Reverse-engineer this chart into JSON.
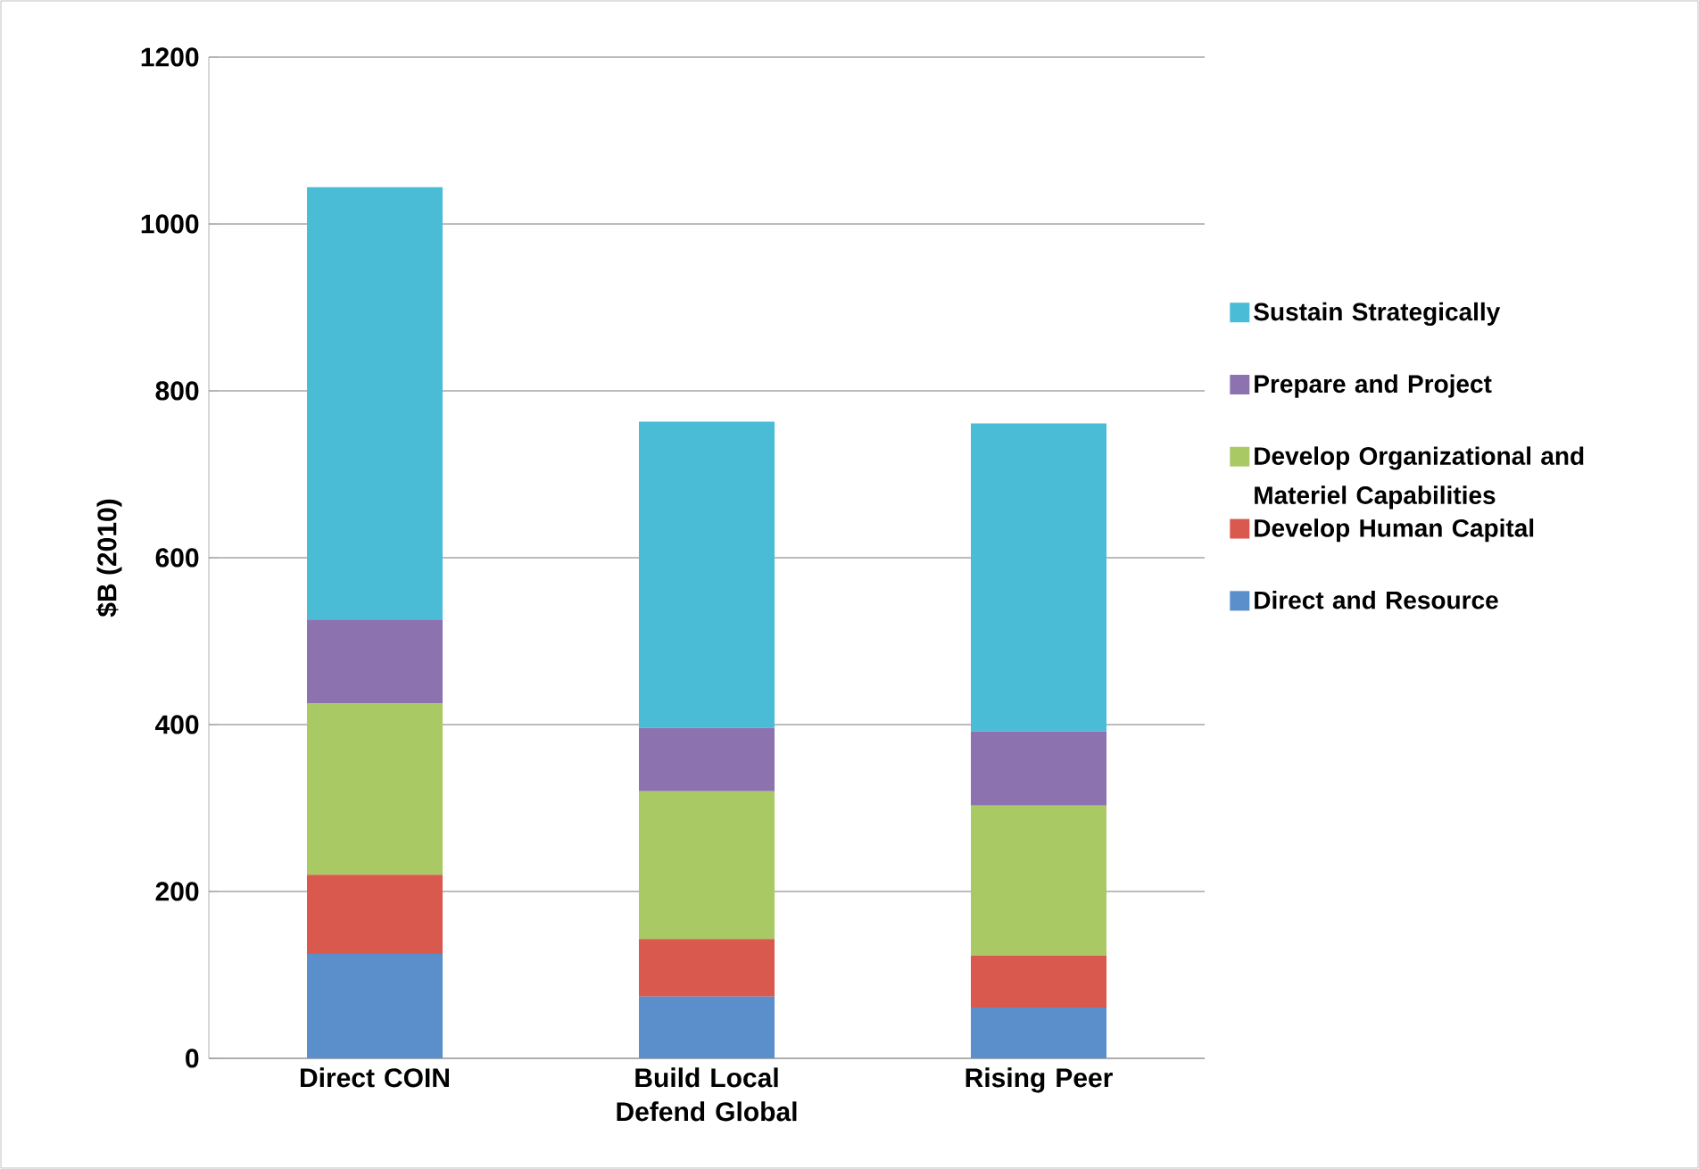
{
  "chart_data": {
    "type": "bar",
    "stacked": true,
    "ylabel": "$B (2010)",
    "categories": [
      "Direct COIN",
      "Build Local Defend Global",
      "Rising Peer"
    ],
    "series": [
      {
        "name": "Direct and Resource",
        "color": "#5b8fcc",
        "values": [
          125,
          74,
          61
        ]
      },
      {
        "name": "Develop Human Capital",
        "color": "#d9594f",
        "values": [
          95,
          69,
          62
        ]
      },
      {
        "name": "Develop Organizational and Materiel Capabilities",
        "color": "#a9c965",
        "values": [
          205,
          177,
          180
        ]
      },
      {
        "name": "Prepare and Project",
        "color": "#8d72b0",
        "values": [
          101,
          76,
          89
        ]
      },
      {
        "name": "Sustain Strategically",
        "color": "#4bbcd6",
        "values": [
          518,
          367,
          369
        ]
      }
    ],
    "ylim": [
      0,
      1200
    ],
    "yticks": [
      0,
      200,
      400,
      600,
      800,
      1000,
      1200
    ],
    "grid": "y",
    "legend": "right"
  }
}
